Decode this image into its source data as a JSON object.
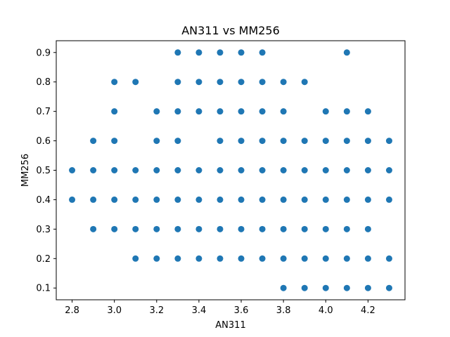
{
  "chart_data": {
    "type": "scatter",
    "title": "AN311 vs MM256",
    "xlabel": "AN311",
    "ylabel": "MM256",
    "xlim": [
      2.725,
      4.375
    ],
    "ylim": [
      0.06,
      0.94
    ],
    "xticks": [
      "2.8",
      "3.0",
      "3.2",
      "3.4",
      "3.6",
      "3.8",
      "4.0",
      "4.2"
    ],
    "yticks": [
      "0.1",
      "0.2",
      "0.3",
      "0.4",
      "0.5",
      "0.6",
      "0.7",
      "0.8",
      "0.9"
    ],
    "grid": false,
    "marker_color": "#1f77b4",
    "points": [
      [
        2.8,
        0.5
      ],
      [
        2.8,
        0.4
      ],
      [
        2.9,
        0.6
      ],
      [
        2.9,
        0.5
      ],
      [
        2.9,
        0.4
      ],
      [
        2.9,
        0.3
      ],
      [
        3.0,
        0.8
      ],
      [
        3.0,
        0.7
      ],
      [
        3.0,
        0.6
      ],
      [
        3.0,
        0.5
      ],
      [
        3.0,
        0.4
      ],
      [
        3.0,
        0.3
      ],
      [
        3.1,
        0.8
      ],
      [
        3.1,
        0.5
      ],
      [
        3.1,
        0.4
      ],
      [
        3.1,
        0.3
      ],
      [
        3.1,
        0.2
      ],
      [
        3.2,
        0.7
      ],
      [
        3.2,
        0.6
      ],
      [
        3.2,
        0.5
      ],
      [
        3.2,
        0.4
      ],
      [
        3.2,
        0.3
      ],
      [
        3.2,
        0.2
      ],
      [
        3.3,
        0.9
      ],
      [
        3.3,
        0.8
      ],
      [
        3.3,
        0.7
      ],
      [
        3.3,
        0.6
      ],
      [
        3.3,
        0.5
      ],
      [
        3.3,
        0.4
      ],
      [
        3.3,
        0.3
      ],
      [
        3.3,
        0.2
      ],
      [
        3.4,
        0.9
      ],
      [
        3.4,
        0.8
      ],
      [
        3.4,
        0.7
      ],
      [
        3.4,
        0.5
      ],
      [
        3.4,
        0.4
      ],
      [
        3.4,
        0.3
      ],
      [
        3.4,
        0.2
      ],
      [
        3.5,
        0.9
      ],
      [
        3.5,
        0.8
      ],
      [
        3.5,
        0.7
      ],
      [
        3.5,
        0.6
      ],
      [
        3.5,
        0.5
      ],
      [
        3.5,
        0.4
      ],
      [
        3.5,
        0.3
      ],
      [
        3.5,
        0.2
      ],
      [
        3.6,
        0.9
      ],
      [
        3.6,
        0.8
      ],
      [
        3.6,
        0.7
      ],
      [
        3.6,
        0.6
      ],
      [
        3.6,
        0.5
      ],
      [
        3.6,
        0.4
      ],
      [
        3.6,
        0.3
      ],
      [
        3.6,
        0.2
      ],
      [
        3.7,
        0.9
      ],
      [
        3.7,
        0.8
      ],
      [
        3.7,
        0.7
      ],
      [
        3.7,
        0.6
      ],
      [
        3.7,
        0.5
      ],
      [
        3.7,
        0.4
      ],
      [
        3.7,
        0.3
      ],
      [
        3.7,
        0.2
      ],
      [
        3.8,
        0.8
      ],
      [
        3.8,
        0.7
      ],
      [
        3.8,
        0.6
      ],
      [
        3.8,
        0.5
      ],
      [
        3.8,
        0.4
      ],
      [
        3.8,
        0.3
      ],
      [
        3.8,
        0.2
      ],
      [
        3.8,
        0.1
      ],
      [
        3.9,
        0.8
      ],
      [
        3.9,
        0.6
      ],
      [
        3.9,
        0.5
      ],
      [
        3.9,
        0.4
      ],
      [
        3.9,
        0.3
      ],
      [
        3.9,
        0.2
      ],
      [
        3.9,
        0.1
      ],
      [
        4.0,
        0.7
      ],
      [
        4.0,
        0.6
      ],
      [
        4.0,
        0.5
      ],
      [
        4.0,
        0.4
      ],
      [
        4.0,
        0.3
      ],
      [
        4.0,
        0.2
      ],
      [
        4.0,
        0.1
      ],
      [
        4.1,
        0.9
      ],
      [
        4.1,
        0.7
      ],
      [
        4.1,
        0.6
      ],
      [
        4.1,
        0.5
      ],
      [
        4.1,
        0.4
      ],
      [
        4.1,
        0.3
      ],
      [
        4.1,
        0.2
      ],
      [
        4.1,
        0.1
      ],
      [
        4.2,
        0.7
      ],
      [
        4.2,
        0.6
      ],
      [
        4.2,
        0.5
      ],
      [
        4.2,
        0.4
      ],
      [
        4.2,
        0.3
      ],
      [
        4.2,
        0.2
      ],
      [
        4.2,
        0.1
      ],
      [
        4.3,
        0.6
      ],
      [
        4.3,
        0.5
      ],
      [
        4.3,
        0.4
      ],
      [
        4.3,
        0.2
      ],
      [
        4.3,
        0.1
      ]
    ]
  }
}
